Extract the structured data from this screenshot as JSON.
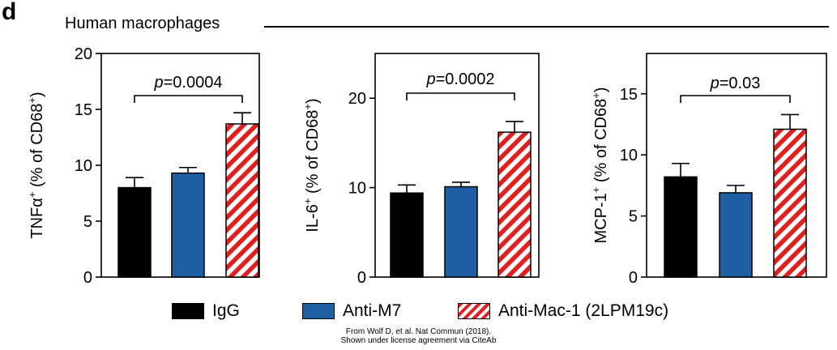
{
  "panel_label": "d",
  "group_title": "Human macrophages",
  "credit": {
    "line1": "From Wolf D, et al. Nat Commun (2018).",
    "line2": "Shown under license agreement via CiteAb"
  },
  "legend": [
    {
      "label": "IgG",
      "color": "#000000",
      "pattern": "solid"
    },
    {
      "label": "Anti-M7",
      "color": "#1f5fa3",
      "pattern": "solid"
    },
    {
      "label": "Anti-Mac-1 (2LPM19c)",
      "color": "#e02020",
      "pattern": "stripes"
    }
  ],
  "chart_data": [
    {
      "type": "bar",
      "categories": [
        "IgG",
        "Anti-M7",
        "Anti-Mac-1 (2LPM19c)"
      ],
      "values": [
        8.0,
        9.3,
        13.7
      ],
      "errors": [
        0.9,
        0.5,
        1.0
      ],
      "ylabel_main": "TNFα",
      "ylabel_sup": "+",
      "ylabel_rest": " (% of CD68",
      "ylabel_sup2": "+",
      "ylabel_end": ")",
      "ylim": [
        0,
        20
      ],
      "yticks": [
        "0",
        "5",
        "10",
        "15",
        "20"
      ],
      "annotation": {
        "p_italic": "p",
        "p_text": "=0.0004",
        "from": 0,
        "to": 2
      }
    },
    {
      "type": "bar",
      "categories": [
        "IgG",
        "Anti-M7",
        "Anti-Mac-1 (2LPM19c)"
      ],
      "values": [
        9.4,
        10.1,
        16.2
      ],
      "errors": [
        0.9,
        0.5,
        1.2
      ],
      "ylabel_main": "IL-6",
      "ylabel_sup": "+",
      "ylabel_rest": " (% of CD68",
      "ylabel_sup2": "+",
      "ylabel_end": ")",
      "ylim": [
        0,
        25
      ],
      "yticks": [
        "0",
        "10",
        "20"
      ],
      "annotation": {
        "p_italic": "p",
        "p_text": "=0.0002",
        "from": 0,
        "to": 2
      }
    },
    {
      "type": "bar",
      "categories": [
        "IgG",
        "Anti-M7",
        "Anti-Mac-1 (2LPM19c)"
      ],
      "values": [
        8.2,
        6.9,
        12.1
      ],
      "errors": [
        1.1,
        0.6,
        1.2
      ],
      "ylabel_main": "MCP-1",
      "ylabel_sup": "+",
      "ylabel_rest": " (% of CD68",
      "ylabel_sup2": "+",
      "ylabel_end": ")",
      "ylim": [
        0,
        18.3
      ],
      "yticks": [
        "0",
        "5",
        "10",
        "15"
      ],
      "annotation": {
        "p_italic": "p",
        "p_text": "=0.03",
        "from": 0,
        "to": 2
      }
    }
  ]
}
